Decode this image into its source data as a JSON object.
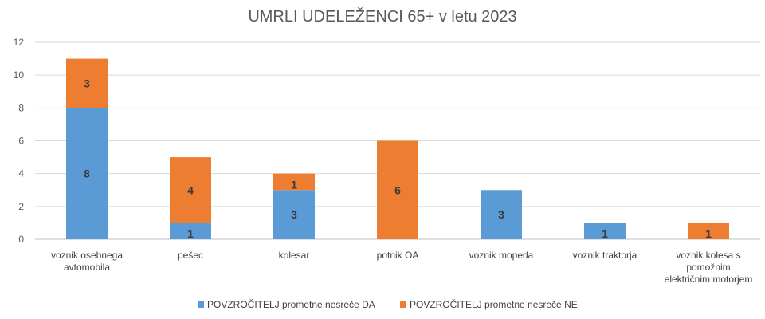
{
  "chart_data": {
    "type": "bar",
    "stacked": true,
    "title": "UMRLI UDELEŽENCI 65+ v letu 2023",
    "categories": [
      [
        "voznik osebnega",
        "avtomobila"
      ],
      [
        "pešec"
      ],
      [
        "kolesar"
      ],
      [
        "potnik OA"
      ],
      [
        "voznik mopeda"
      ],
      [
        "voznik traktorja"
      ],
      [
        "voznik kolesa s",
        "pomožnim",
        "električnim motorjem"
      ]
    ],
    "series": [
      {
        "name": "POVZROČITELJ prometne nesreče DA",
        "color": "#5b9bd5",
        "values": [
          8,
          1,
          3,
          0,
          3,
          1,
          0
        ]
      },
      {
        "name": "POVZROČITELJ prometne nesreče NE",
        "color": "#ed7d31",
        "values": [
          3,
          4,
          1,
          6,
          0,
          0,
          1
        ]
      }
    ],
    "ylim": [
      0,
      12
    ],
    "yticks": [
      0,
      2,
      4,
      6,
      8,
      10,
      12
    ],
    "grid": true,
    "legend_position": "bottom"
  }
}
